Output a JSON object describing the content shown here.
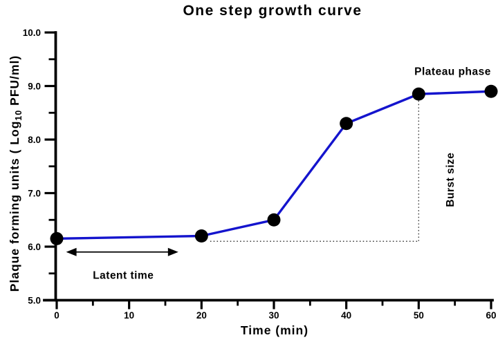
{
  "chart_data": {
    "type": "line",
    "title": "One step growth curve",
    "xlabel": "Time (min)",
    "ylabel": "Plaque forming units ( Log10 PFU/ml)",
    "ylabel_parts": {
      "pre": "Plaque forming units ( Log",
      "sub": "10",
      "post": " PFU/ml)"
    },
    "xlim": [
      0,
      60
    ],
    "ylim": [
      5.0,
      10.0
    ],
    "x": [
      0,
      20,
      30,
      40,
      50,
      60
    ],
    "y": [
      6.15,
      6.2,
      6.5,
      8.3,
      8.85,
      8.9
    ],
    "x_major_ticks": [
      0,
      10,
      20,
      30,
      40,
      50,
      60
    ],
    "x_tick_labels": [
      "0",
      "10",
      "20",
      "30",
      "40",
      "50",
      "60"
    ],
    "x_minor_ticks": [
      5,
      15,
      25,
      35,
      45,
      55
    ],
    "y_major_ticks": [
      5.0,
      6.0,
      7.0,
      8.0,
      9.0,
      10.0
    ],
    "y_tick_labels": [
      "5.0",
      "6.0",
      "7.0",
      "8.0",
      "9.0",
      "10.0"
    ],
    "y_minor_ticks": [
      5.5,
      6.5,
      7.5,
      8.5,
      9.5
    ],
    "grid": false,
    "legend": false,
    "line_color": "#1414cd",
    "marker_color": "#000000",
    "axis_color": "#000000",
    "dotted_color": "#3c3c3c",
    "annotations": {
      "plateau": {
        "text": "Plateau phase",
        "x": 54.7,
        "y": 9.28
      },
      "burst": {
        "text": "Burst size",
        "x": 54.3,
        "y": 7.25,
        "rotate": -90
      },
      "latent": {
        "text": "Latent time",
        "x": 9.2,
        "y": 5.47
      },
      "latent_arrow": {
        "x1": 1.3,
        "x2": 16.8,
        "y": 5.9
      },
      "burst_dotted_h": {
        "x1": 21.2,
        "x2": 50,
        "y": 6.1
      },
      "burst_dotted_v": {
        "x": 50,
        "y1": 8.85,
        "y2": 6.1
      }
    }
  }
}
